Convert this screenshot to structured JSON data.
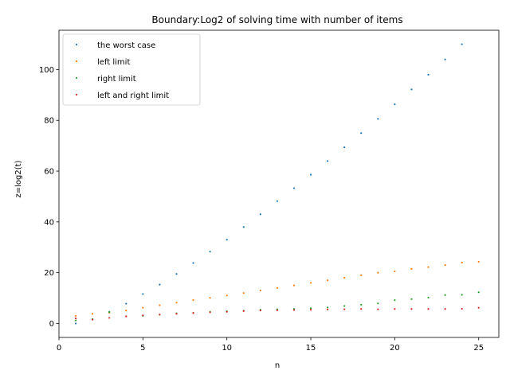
{
  "chart_data": {
    "type": "scatter",
    "title": "Boundary:Log2 of solving time with number of items",
    "xlabel": "n",
    "ylabel": "z=log2(t)",
    "xlim": [
      0,
      26.2
    ],
    "ylim": [
      -5.5,
      115.5
    ],
    "xticks": [
      0,
      5,
      10,
      15,
      20,
      25
    ],
    "yticks": [
      0,
      20,
      40,
      60,
      80,
      100
    ],
    "grid": false,
    "legend_position": "top-left",
    "x": [
      1,
      2,
      3,
      4,
      5,
      6,
      7,
      8,
      9,
      10,
      11,
      12,
      13,
      14,
      15,
      16,
      17,
      18,
      19,
      20,
      21,
      22,
      23,
      24,
      25
    ],
    "series": [
      {
        "name": "the worst case",
        "color": "#1f77b4",
        "values": [
          0,
          1.6,
          4.6,
          7.8,
          11.6,
          15.3,
          19.5,
          23.8,
          28.3,
          33,
          38,
          43,
          48.2,
          53.3,
          58.6,
          64,
          69.4,
          75,
          80.6,
          86.3,
          92.2,
          98,
          104,
          110,
          null
        ]
      },
      {
        "name": "left limit",
        "color": "#ff7f0e",
        "values": [
          3,
          3.8,
          4.2,
          5.1,
          6.2,
          7.2,
          8.2,
          9.2,
          10.1,
          11,
          12,
          13,
          14,
          15,
          16,
          17,
          18,
          19,
          20,
          20.5,
          21.5,
          22.2,
          23,
          24,
          24.3
        ]
      },
      {
        "name": "right limit",
        "color": "#2ca02c",
        "values": [
          1.2,
          1.7,
          4.5,
          2.8,
          3,
          3.5,
          4,
          4.2,
          4.6,
          4.8,
          5,
          5.4,
          5.6,
          5.7,
          6,
          6.3,
          6.9,
          7.4,
          7.9,
          9.2,
          9.6,
          10.2,
          11.2,
          11.3,
          12.3
        ]
      },
      {
        "name": "left and right limit",
        "color": "#d62728",
        "values": [
          2,
          1.5,
          2.2,
          2.8,
          3.2,
          3.5,
          3.8,
          4.1,
          4.4,
          4.6,
          4.9,
          5.1,
          5.2,
          5.3,
          5.4,
          5.5,
          5.6,
          5.7,
          5.6,
          5.7,
          5.7,
          5.7,
          5.7,
          5.8,
          6.2
        ]
      }
    ]
  }
}
